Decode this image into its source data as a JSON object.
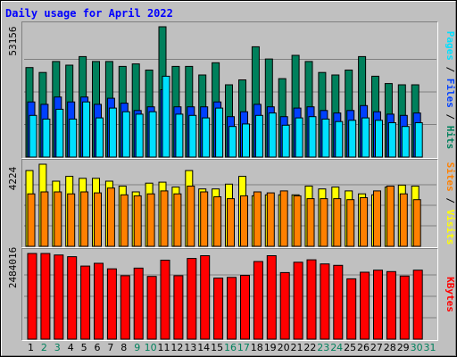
{
  "chart_data": {
    "type": "bar",
    "title": "Daily usage for April 2022",
    "categories": [
      "1",
      "2",
      "3",
      "4",
      "5",
      "6",
      "7",
      "8",
      "9",
      "10",
      "11",
      "12",
      "13",
      "14",
      "15",
      "16",
      "17",
      "18",
      "19",
      "20",
      "21",
      "22",
      "23",
      "24",
      "25",
      "26",
      "27",
      "28",
      "29",
      "30",
      "31"
    ],
    "weekend_days": [
      2,
      3,
      9,
      10,
      16,
      17,
      23,
      24,
      30,
      31
    ],
    "panels": [
      {
        "name": "hits-files-pages",
        "max_label": "53156",
        "ymax": 53156,
        "right_label": {
          "pages": "Pages",
          "files": "Files",
          "hits": "Hits",
          "sep": " / "
        },
        "series": [
          {
            "name": "Hits",
            "color": "#00805c",
            "values": [
              36500,
              34500,
              39000,
              37500,
              41000,
              39000,
              39000,
              37000,
              38000,
              35500,
              53156,
              37000,
              37000,
              33500,
              38500,
              29500,
              31500,
              45000,
              40000,
              32000,
              41500,
              39000,
              34500,
              33500,
              35500,
              41000,
              33000,
              30000,
              29500,
              29500,
              0
            ]
          },
          {
            "name": "Files",
            "color": "#0040ff",
            "values": [
              22500,
              21500,
              24500,
              22500,
              24500,
              21500,
              24000,
              22000,
              19000,
              20500,
              27500,
              20500,
              20500,
              20500,
              22500,
              16500,
              18500,
              21500,
              20500,
              16500,
              20000,
              20500,
              19000,
              18000,
              19000,
              21000,
              18500,
              17500,
              17000,
              18000,
              0
            ]
          },
          {
            "name": "Pages",
            "color": "#00e0ff",
            "values": [
              17000,
              15500,
              19500,
              15500,
              22500,
              16000,
              20000,
              18500,
              17500,
              18500,
              33000,
              17500,
              17000,
              16000,
              20000,
              12500,
              13500,
              17000,
              18000,
              13000,
              16000,
              16500,
              15500,
              14500,
              15000,
              16000,
              15000,
              14000,
              12500,
              14000,
              0
            ]
          }
        ]
      },
      {
        "name": "visits-sites",
        "max_label": "4224",
        "ymax": 4224,
        "right_label": {
          "sites": "Sites",
          "visits": "Visits",
          "sep": " / "
        },
        "series": [
          {
            "name": "Visits",
            "color": "#ffff00",
            "values": [
              3900,
              4224,
              3350,
              3600,
              3500,
              3500,
              3350,
              3100,
              2800,
              3250,
              3300,
              3050,
              3900,
              2950,
              2950,
              3200,
              3600,
              2600,
              2650,
              2650,
              2650,
              3100,
              2950,
              3050,
              2850,
              2700,
              2650,
              3050,
              3150,
              3100,
              0
            ]
          },
          {
            "name": "Sites",
            "color": "#ff8000",
            "values": [
              2700,
              2800,
              2800,
              2700,
              2800,
              2750,
              3000,
              2650,
              2600,
              2700,
              2850,
              2700,
              3100,
              2800,
              2550,
              2450,
              2600,
              2800,
              2750,
              2850,
              2600,
              2450,
              2450,
              2450,
              2400,
              2500,
              2850,
              3100,
              2700,
              2400,
              0
            ]
          }
        ]
      },
      {
        "name": "kbytes",
        "max_label": "2484016",
        "ymax": 2484016,
        "right_label": {
          "kbytes": "KBytes"
        },
        "series": [
          {
            "name": "KBytes",
            "color": "#ff0000",
            "values": [
              2484016,
              2484016,
              2440000,
              2390000,
              2120000,
              2200000,
              2040000,
              1840000,
              2060000,
              1820000,
              2290000,
              1840000,
              2340000,
              2420000,
              1770000,
              1790000,
              1850000,
              2250000,
              2420000,
              1930000,
              2230000,
              2300000,
              2180000,
              2140000,
              1750000,
              1940000,
              2000000,
              1960000,
              1830000,
              2000000,
              0
            ]
          }
        ]
      }
    ],
    "colors": {
      "background": "#c0c0c0",
      "title": "#0000ff",
      "weekday_label": "#000000",
      "weekend_label": "#00805c",
      "hits": "#00805c",
      "files": "#0040ff",
      "pages": "#00e0ff",
      "visits": "#ffff00",
      "sites": "#ff8000",
      "kbytes": "#ff0000"
    }
  }
}
